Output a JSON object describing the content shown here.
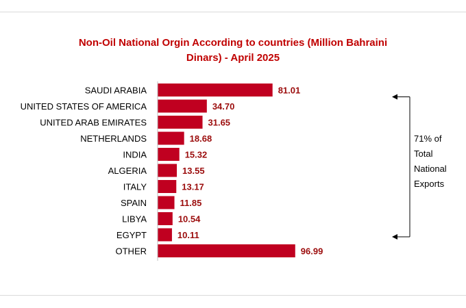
{
  "chart_data": {
    "type": "bar",
    "orientation": "horizontal",
    "title_line1": "Non-Oil National Orgin According to countries (Million Bahraini",
    "title_line2": "Dinars) - April 2025",
    "categories": [
      "SAUDI ARABIA",
      "UNITED STATES OF AMERICA",
      "UNITED ARAB EMIRATES",
      "NETHERLANDS",
      "INDIA",
      "ALGERIA",
      "ITALY",
      "SPAIN",
      "LIBYA",
      "EGYPT",
      "OTHER"
    ],
    "values": [
      81.01,
      34.7,
      31.65,
      18.68,
      15.32,
      13.55,
      13.17,
      11.85,
      10.54,
      10.11,
      96.99
    ],
    "value_labels": [
      "81.01",
      "34.70",
      "31.65",
      "18.68",
      "15.32",
      "13.55",
      "13.17",
      "11.85",
      "10.54",
      "10.11",
      "96.99"
    ],
    "xlim": [
      0,
      100
    ],
    "grid": false,
    "bar_color": "#c00020",
    "value_label_color": "#9b0c0c",
    "annotation": {
      "text": "71% of\nTotal\nNational\nExports",
      "spans_from": "SAUDI ARABIA",
      "spans_to": "EGYPT"
    }
  }
}
